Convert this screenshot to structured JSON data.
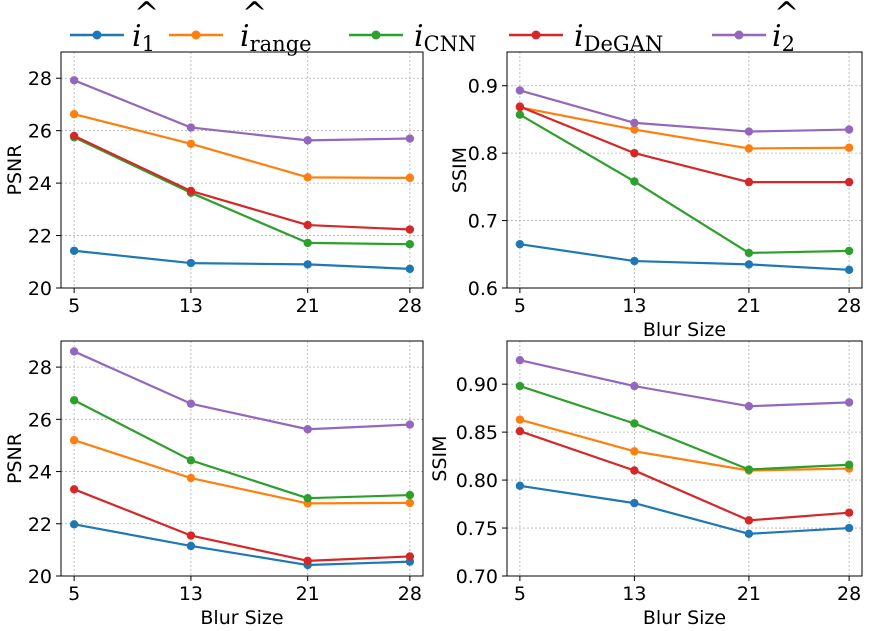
{
  "legend": [
    {
      "label": "i",
      "mark": "^",
      "sub": "1",
      "color": "#1f77b4"
    },
    {
      "label": "i",
      "mark": "^",
      "sub": "range",
      "color": "#ff7f0e"
    },
    {
      "label": "i",
      "mark": "",
      "sub": "CNN",
      "color": "#2ca02c"
    },
    {
      "label": "i",
      "mark": "",
      "sub": "DeGAN",
      "color": "#d62728"
    },
    {
      "label": "i",
      "mark": "^",
      "sub": "2",
      "color": "#9467bd"
    }
  ],
  "chart_data": [
    {
      "type": "line",
      "xlabel": "",
      "ylabel": "PSNR",
      "categories": [
        "5",
        "13",
        "21",
        "28"
      ],
      "x": [
        5,
        13,
        21,
        28
      ],
      "xlim": [
        4.1,
        28.9
      ],
      "ylim": [
        20,
        29
      ],
      "yticks": [
        20,
        22,
        24,
        26,
        28
      ],
      "ytick_labels": [
        "20",
        "22",
        "24",
        "26",
        "28"
      ],
      "grid": true,
      "series": [
        {
          "name": "i_1 hat",
          "color": "#1f77b4",
          "values": [
            21.42,
            20.95,
            20.9,
            20.73
          ]
        },
        {
          "name": "i_range hat",
          "color": "#ff7f0e",
          "values": [
            26.63,
            25.5,
            24.22,
            24.2
          ]
        },
        {
          "name": "i_CNN",
          "color": "#2ca02c",
          "values": [
            25.75,
            23.63,
            21.72,
            21.67
          ]
        },
        {
          "name": "i_DeGAN",
          "color": "#d62728",
          "values": [
            25.8,
            23.7,
            22.4,
            22.23
          ]
        },
        {
          "name": "i_2 hat",
          "color": "#9467bd",
          "values": [
            27.92,
            26.12,
            25.63,
            25.7
          ]
        }
      ]
    },
    {
      "type": "line",
      "xlabel": "Blur Size",
      "ylabel": "SSIM",
      "categories": [
        "5",
        "13",
        "21",
        "28"
      ],
      "x": [
        5,
        13,
        21,
        28
      ],
      "xlim": [
        4.1,
        28.9
      ],
      "ylim": [
        0.6,
        0.95
      ],
      "yticks": [
        0.6,
        0.7,
        0.8,
        0.9
      ],
      "ytick_labels": [
        "0.6",
        "0.7",
        "0.8",
        "0.9"
      ],
      "grid": true,
      "series": [
        {
          "name": "i_1 hat",
          "color": "#1f77b4",
          "values": [
            0.665,
            0.64,
            0.635,
            0.627
          ]
        },
        {
          "name": "i_range hat",
          "color": "#ff7f0e",
          "values": [
            0.868,
            0.835,
            0.807,
            0.808
          ]
        },
        {
          "name": "i_CNN",
          "color": "#2ca02c",
          "values": [
            0.857,
            0.758,
            0.652,
            0.655
          ]
        },
        {
          "name": "i_DeGAN",
          "color": "#d62728",
          "values": [
            0.869,
            0.8,
            0.757,
            0.757
          ]
        },
        {
          "name": "i_2 hat",
          "color": "#9467bd",
          "values": [
            0.893,
            0.845,
            0.832,
            0.835
          ]
        }
      ]
    },
    {
      "type": "line",
      "xlabel": "Blur Size",
      "ylabel": "PSNR",
      "categories": [
        "5",
        "13",
        "21",
        "28"
      ],
      "x": [
        5,
        13,
        21,
        28
      ],
      "xlim": [
        4.1,
        28.9
      ],
      "ylim": [
        20,
        29
      ],
      "yticks": [
        20,
        22,
        24,
        26,
        28
      ],
      "ytick_labels": [
        "20",
        "22",
        "24",
        "26",
        "28"
      ],
      "grid": true,
      "series": [
        {
          "name": "i_1 hat",
          "color": "#1f77b4",
          "values": [
            21.98,
            21.15,
            20.42,
            20.55
          ]
        },
        {
          "name": "i_range hat",
          "color": "#ff7f0e",
          "values": [
            25.2,
            23.75,
            22.78,
            22.8
          ]
        },
        {
          "name": "i_CNN",
          "color": "#2ca02c",
          "values": [
            26.73,
            24.43,
            22.98,
            23.1
          ]
        },
        {
          "name": "i_DeGAN",
          "color": "#d62728",
          "values": [
            23.32,
            21.55,
            20.58,
            20.75
          ]
        },
        {
          "name": "i_2 hat",
          "color": "#9467bd",
          "values": [
            28.6,
            26.6,
            25.62,
            25.8
          ]
        }
      ]
    },
    {
      "type": "line",
      "xlabel": "Blur Size",
      "ylabel": "SSIM",
      "categories": [
        "5",
        "13",
        "21",
        "28"
      ],
      "x": [
        5,
        13,
        21,
        28
      ],
      "xlim": [
        4.1,
        28.9
      ],
      "ylim": [
        0.7,
        0.945
      ],
      "yticks": [
        0.7,
        0.75,
        0.8,
        0.85,
        0.9
      ],
      "ytick_labels": [
        "0.70",
        "0.75",
        "0.80",
        "0.85",
        "0.90"
      ],
      "grid": true,
      "series": [
        {
          "name": "i_1 hat",
          "color": "#1f77b4",
          "values": [
            0.794,
            0.776,
            0.744,
            0.75
          ]
        },
        {
          "name": "i_range hat",
          "color": "#ff7f0e",
          "values": [
            0.863,
            0.83,
            0.81,
            0.812
          ]
        },
        {
          "name": "i_CNN",
          "color": "#2ca02c",
          "values": [
            0.898,
            0.859,
            0.811,
            0.816
          ]
        },
        {
          "name": "i_DeGAN",
          "color": "#d62728",
          "values": [
            0.851,
            0.81,
            0.758,
            0.766
          ]
        },
        {
          "name": "i_2 hat",
          "color": "#9467bd",
          "values": [
            0.925,
            0.898,
            0.877,
            0.881
          ]
        }
      ]
    }
  ]
}
